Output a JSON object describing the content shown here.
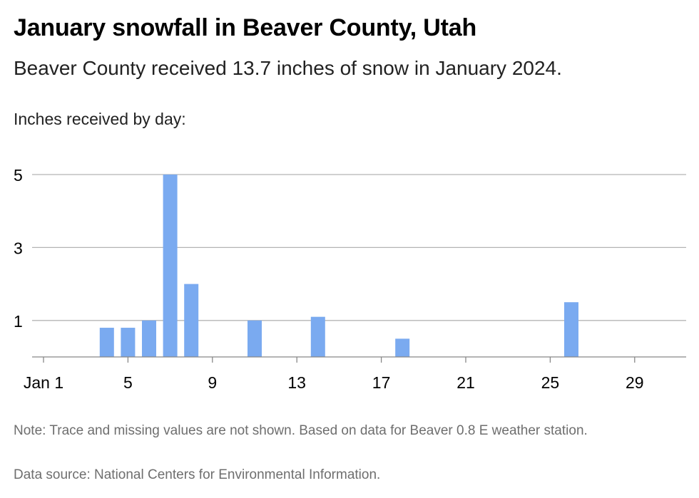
{
  "header": {
    "title": "January snowfall in Beaver County, Utah",
    "subtitle": "Beaver County received 13.7 inches of snow in January 2024."
  },
  "notes": {
    "note": "Note: Trace and missing values are not shown. Based on data for Beaver 0.8 E weather station.",
    "source": "Data source: National Centers for Environmental Information."
  },
  "colors": {
    "bar": "#7aaaf0",
    "grid": "#b4b4b4",
    "axis": "#888888"
  },
  "chart_data": {
    "type": "bar",
    "ylabel": "Inches received by day:",
    "xlim": [
      1,
      31
    ],
    "ylim": [
      0,
      5
    ],
    "grid": true,
    "yticks": [
      1,
      3,
      5
    ],
    "xticks": [
      {
        "day": 1,
        "label": "Jan 1"
      },
      {
        "day": 5,
        "label": "5"
      },
      {
        "day": 9,
        "label": "9"
      },
      {
        "day": 13,
        "label": "13"
      },
      {
        "day": 17,
        "label": "17"
      },
      {
        "day": 21,
        "label": "21"
      },
      {
        "day": 25,
        "label": "25"
      },
      {
        "day": 29,
        "label": "29"
      }
    ],
    "points": [
      {
        "day": 4,
        "inches": 0.8
      },
      {
        "day": 5,
        "inches": 0.8
      },
      {
        "day": 6,
        "inches": 1.0
      },
      {
        "day": 7,
        "inches": 5.0
      },
      {
        "day": 8,
        "inches": 2.0
      },
      {
        "day": 11,
        "inches": 1.0
      },
      {
        "day": 14,
        "inches": 1.1
      },
      {
        "day": 18,
        "inches": 0.5
      },
      {
        "day": 26,
        "inches": 1.5
      }
    ]
  }
}
